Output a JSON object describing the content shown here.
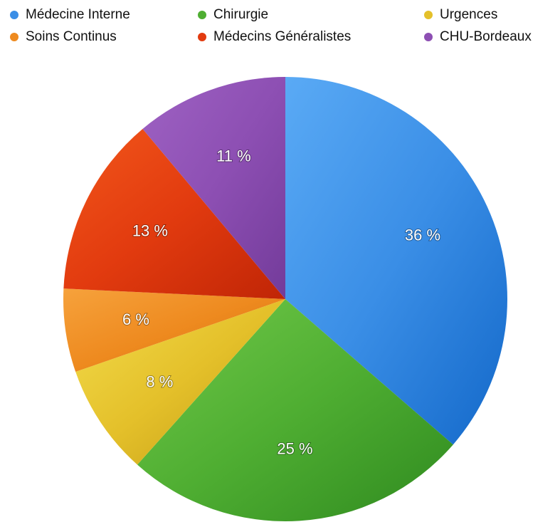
{
  "chart_data": {
    "type": "pie",
    "slices": [
      {
        "name": "Médecine Interne",
        "value": 36,
        "label": "36 %",
        "color": "#3a8ee6",
        "color_light": "#5aaaf5",
        "color_dark": "#1368c9"
      },
      {
        "name": "Chirurgie",
        "value": 25,
        "label": "25 %",
        "color": "#4fae32",
        "color_light": "#72c94a",
        "color_dark": "#2f8a1f"
      },
      {
        "name": "Urgences",
        "value": 8,
        "label": "8 %",
        "color": "#e4c02a",
        "color_light": "#f3dc4c",
        "color_dark": "#c09a14"
      },
      {
        "name": "Soins Continus",
        "value": 6,
        "label": "6 %",
        "color": "#ee8a1f",
        "color_light": "#f6a23c",
        "color_dark": "#d26d0c"
      },
      {
        "name": "Médecins Généralistes",
        "value": 13,
        "label": "13 %",
        "color": "#e23b0f",
        "color_light": "#f2571b",
        "color_dark": "#c02506"
      },
      {
        "name": "CHU-Bordeaux",
        "value": 11,
        "label": "11 %",
        "color": "#8d4fb3",
        "color_light": "#9e62c3",
        "color_dark": "#733b9a"
      }
    ],
    "legend": {
      "placement": "top",
      "items": [
        "Médecine Interne",
        "Chirurgie",
        "Urgences",
        "Soins Continus",
        "Médecins Généralistes",
        "CHU-Bordeaux"
      ]
    }
  }
}
